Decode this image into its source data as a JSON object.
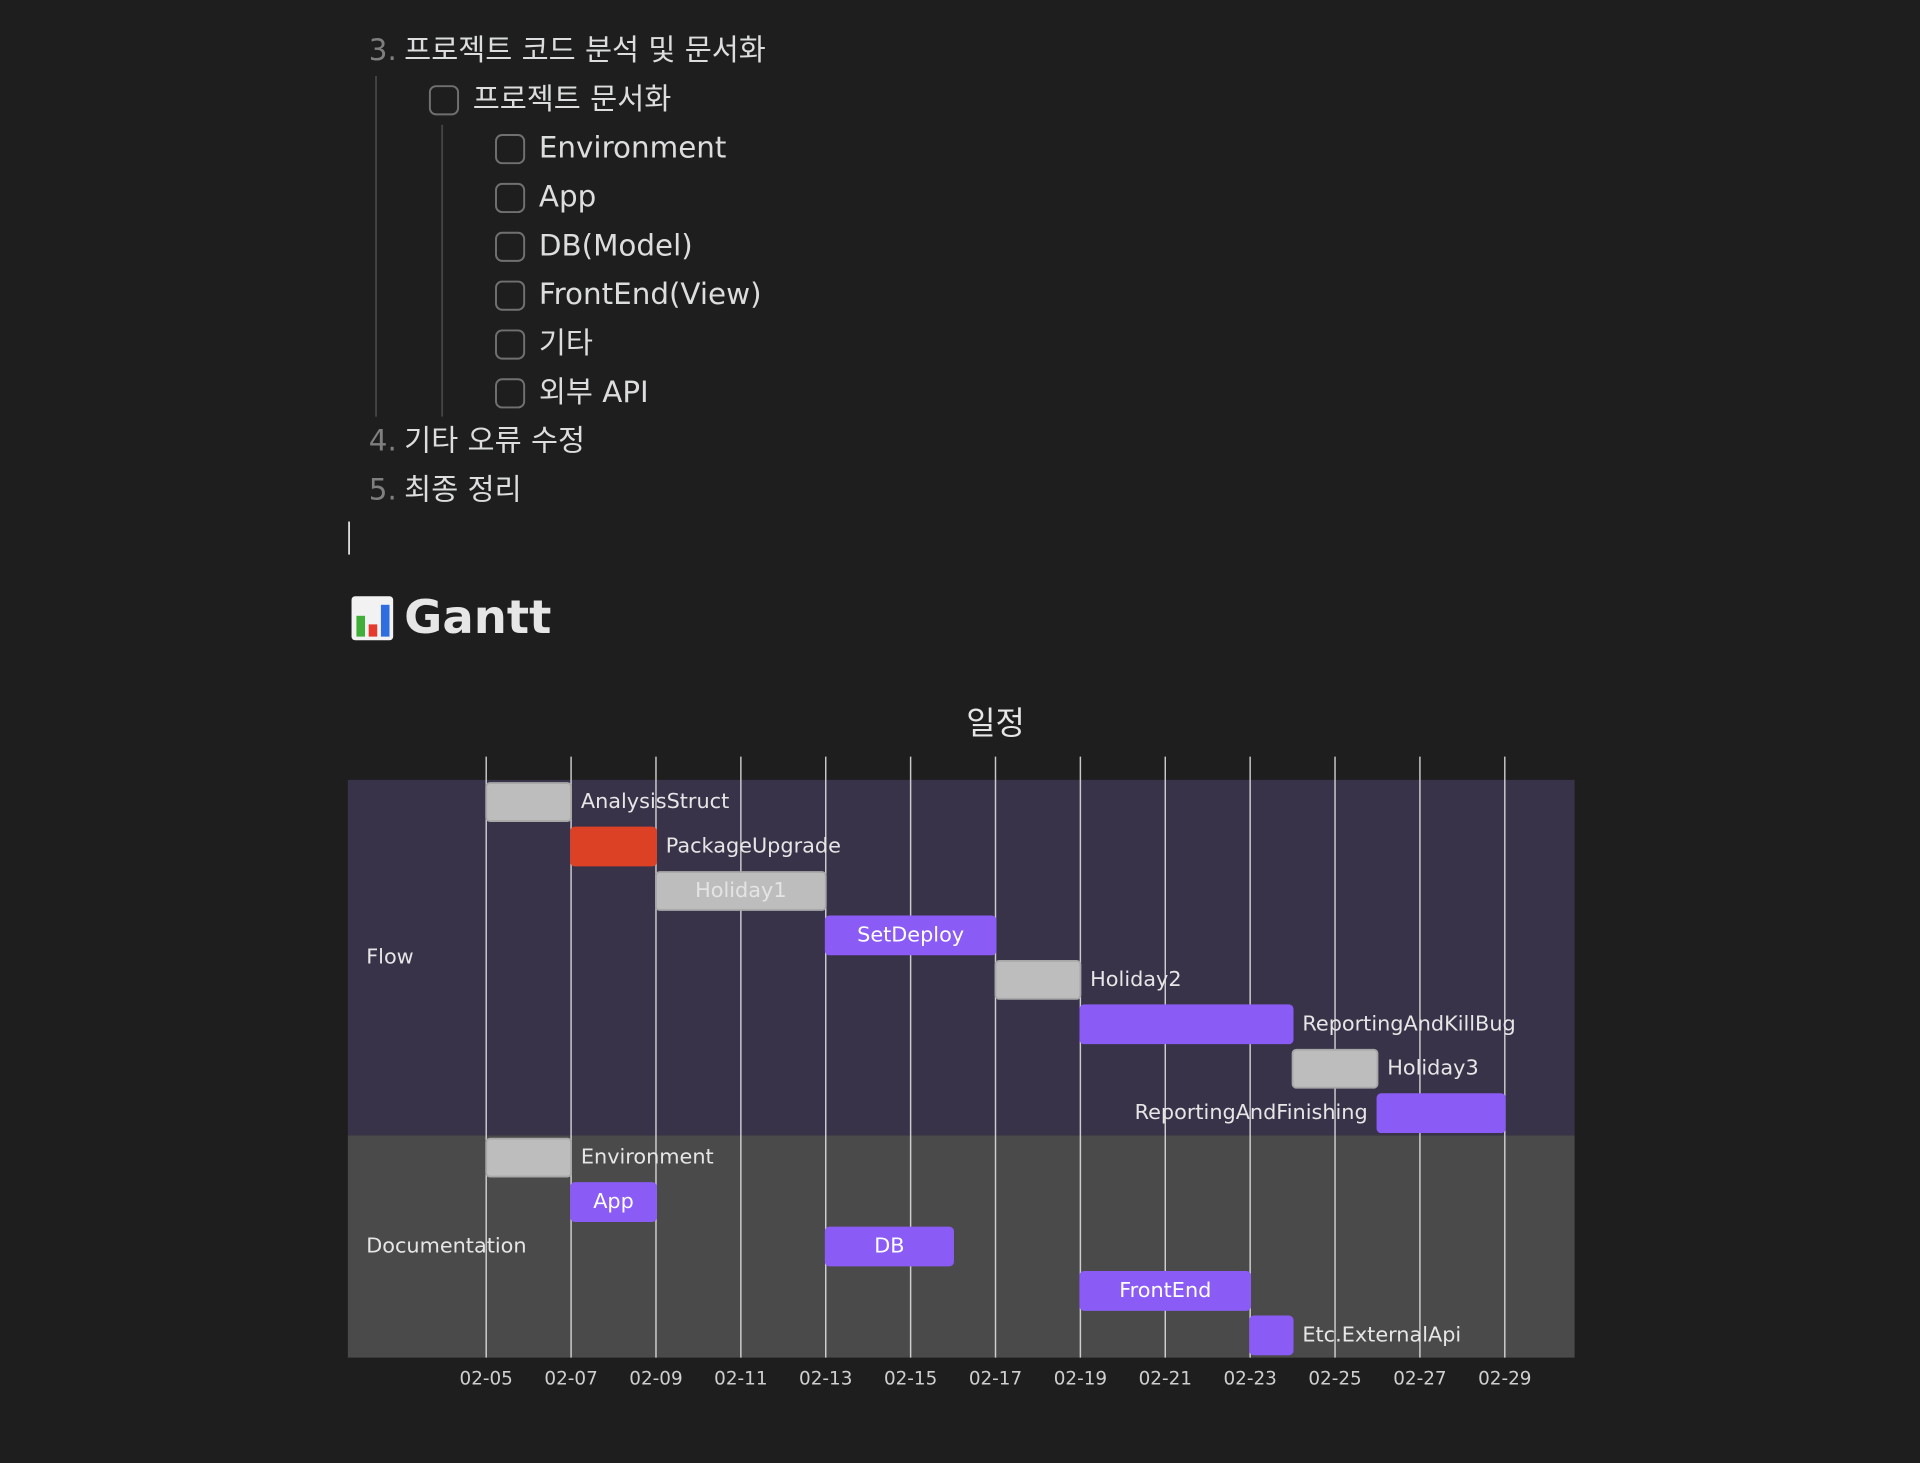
{
  "document": {
    "list": [
      {
        "number": "3.",
        "text": "프로젝트 코드 분석 및 문서화",
        "children": [
          {
            "text": "프로젝트 문서화",
            "checked": false,
            "children": [
              {
                "text": "Environment",
                "checked": false
              },
              {
                "text": "App",
                "checked": false
              },
              {
                "text": "DB(Model)",
                "checked": false
              },
              {
                "text": "FrontEnd(View)",
                "checked": false
              },
              {
                "text": "기타",
                "checked": false
              },
              {
                "text": "외부 API",
                "checked": false
              }
            ]
          }
        ]
      },
      {
        "number": "4.",
        "text": "기타 오류 수정"
      },
      {
        "number": "5.",
        "text": "최종 정리"
      }
    ],
    "heading": "Gantt"
  },
  "chart_data": {
    "type": "gantt",
    "title": "일정",
    "sections": [
      {
        "name": "Flow",
        "color": "#393349"
      },
      {
        "name": "Documentation",
        "color": "#4a4a4a"
      }
    ],
    "tasks": [
      {
        "name": "AnalysisStruct",
        "section": 0,
        "start": "02-05",
        "end": "02-07",
        "color": "#bdbdbd"
      },
      {
        "name": "PackageUpgrade",
        "section": 0,
        "start": "02-07",
        "end": "02-09",
        "color": "#dd4125"
      },
      {
        "name": "Holiday1",
        "section": 0,
        "start": "02-09",
        "end": "02-13",
        "color": "#bdbdbd"
      },
      {
        "name": "SetDeploy",
        "section": 0,
        "start": "02-13",
        "end": "02-17",
        "color": "#8a5cf5"
      },
      {
        "name": "Holiday2",
        "section": 0,
        "start": "02-17",
        "end": "02-19",
        "color": "#bdbdbd"
      },
      {
        "name": "ReportingAndKillBug",
        "section": 0,
        "start": "02-19",
        "end": "02-24",
        "color": "#8a5cf5"
      },
      {
        "name": "Holiday3",
        "section": 0,
        "start": "02-24",
        "end": "02-26",
        "color": "#bdbdbd"
      },
      {
        "name": "ReportingAndFinishing",
        "section": 0,
        "start": "02-26",
        "end": "02-29",
        "color": "#8a5cf5"
      },
      {
        "name": "Environment",
        "section": 1,
        "start": "02-05",
        "end": "02-07",
        "color": "#bdbdbd"
      },
      {
        "name": "App",
        "section": 1,
        "start": "02-07",
        "end": "02-09",
        "color": "#8a5cf5"
      },
      {
        "name": "DB",
        "section": 1,
        "start": "02-13",
        "end": "02-16",
        "color": "#8a5cf5"
      },
      {
        "name": "FrontEnd",
        "section": 1,
        "start": "02-19",
        "end": "02-23",
        "color": "#8a5cf5"
      },
      {
        "name": "Etc.ExternalApi",
        "section": 1,
        "start": "02-23",
        "end": "02-24",
        "color": "#8a5cf5"
      }
    ],
    "xlim": [
      "02-05",
      "02-29"
    ],
    "xticks": [
      "02-05",
      "02-07",
      "02-09",
      "02-11",
      "02-13",
      "02-15",
      "02-17",
      "02-19",
      "02-21",
      "02-23",
      "02-25",
      "02-27",
      "02-29"
    ],
    "grid": true
  }
}
